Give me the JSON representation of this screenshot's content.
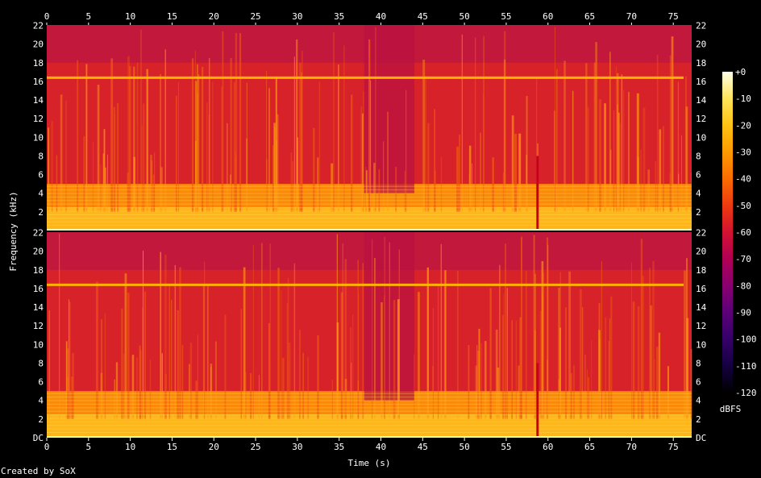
{
  "credit": "Created by SoX",
  "chart_data": {
    "type": "heatmap",
    "title": "",
    "xlabel": "Time (s)",
    "ylabel": "Frequency (kHz)",
    "x_unit": "s",
    "y_unit": "kHz",
    "xlim": [
      0,
      77.2
    ],
    "ylim": [
      0,
      22.05
    ],
    "x_ticks": [
      "0",
      "5",
      "10",
      "15",
      "20",
      "25",
      "30",
      "35",
      "40",
      "45",
      "50",
      "55",
      "60",
      "65",
      "70",
      "75"
    ],
    "y_ticks_top_channel": [
      "2",
      "4",
      "6",
      "8",
      "10",
      "12",
      "14",
      "16",
      "18",
      "20",
      "22"
    ],
    "y_ticks_bottom_channel": [
      "DC",
      "2",
      "4",
      "6",
      "8",
      "10",
      "12",
      "14",
      "16",
      "18",
      "20",
      "22"
    ],
    "channels": 2,
    "colorbar": {
      "label": "dBFS",
      "range": [
        -120,
        0
      ],
      "ticks": [
        "+0",
        "-10",
        "-20",
        "-30",
        "-40",
        "-50",
        "-60",
        "-70",
        "-80",
        "-90",
        "-100",
        "-110",
        "-120"
      ],
      "colors": [
        "#000000",
        "#150040",
        "#35006a",
        "#5c0078",
        "#880070",
        "#b00054",
        "#d41230",
        "#ee3a10",
        "#fa6c00",
        "#fe9a00",
        "#ffc214",
        "#ffe45a",
        "#ffffe6"
      ]
    },
    "features": {
      "tone_line_khz": 16.4,
      "dropout_time_s": 58.7,
      "quiet_segment_s": [
        38,
        44
      ],
      "loud_band_max_khz": 5
    }
  }
}
